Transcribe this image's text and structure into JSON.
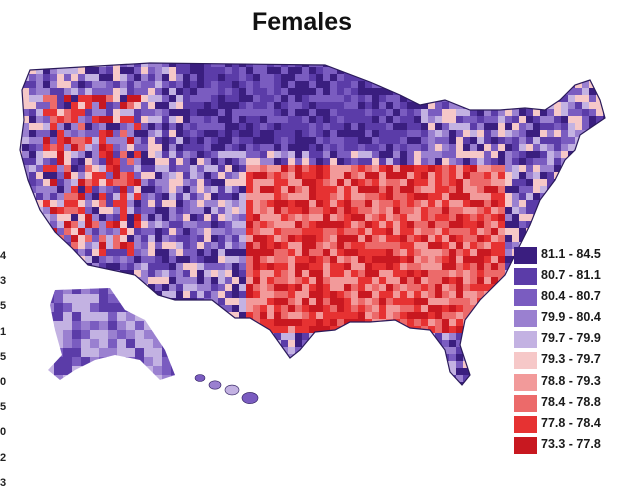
{
  "title": "Females",
  "left_cut_labels": [
    "4",
    "3",
    "5",
    "1",
    "5",
    "0",
    "5",
    "0",
    "2",
    "3"
  ],
  "legend": {
    "items": [
      {
        "label": "81.1 - 84.5",
        "color": "#3a1e7f"
      },
      {
        "label": "80.7 - 81.1",
        "color": "#5b3ca8"
      },
      {
        "label": "80.4 - 80.7",
        "color": "#7a5cc0"
      },
      {
        "label": "79.9 - 80.4",
        "color": "#9a80d0"
      },
      {
        "label": "79.7 - 79.9",
        "color": "#c3b2e2"
      },
      {
        "label": "79.3 - 79.7",
        "color": "#f6c8c8"
      },
      {
        "label": "78.8 - 79.3",
        "color": "#f29a9a"
      },
      {
        "label": "78.4 - 78.8",
        "color": "#ec6a6a"
      },
      {
        "label": "77.8 - 78.4",
        "color": "#e63232"
      },
      {
        "label": "73.3 - 77.8",
        "color": "#c81820"
      }
    ]
  },
  "colors": {
    "background": "#ffffff",
    "map_base": "#6a4cb4",
    "south_band": "#e0383a",
    "outline": "#2a1a5a"
  }
}
